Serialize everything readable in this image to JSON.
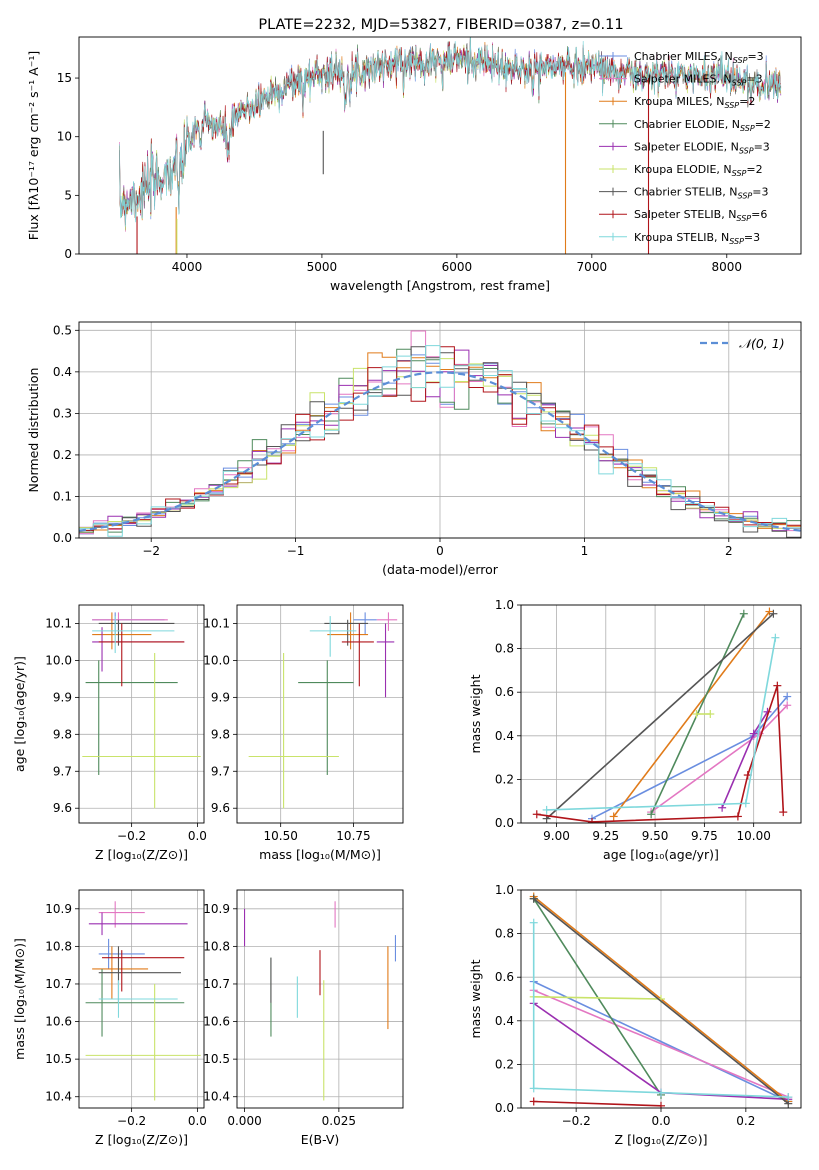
{
  "title": "PLATE=2232, MJD=53827, FIBERID=0387, z=0.11",
  "colors": {
    "Chabrier MILES": "#6a8ee0",
    "Salpeter MILES": "#e377c2",
    "Kroupa MILES": "#e07b1a",
    "Chabrier ELODIE": "#4f8a5c",
    "Salpeter ELODIE": "#9a2fb0",
    "Kroupa ELODIE": "#c9e36a",
    "Chabrier STELIB": "#555555",
    "Salpeter STELIB": "#b0141a",
    "Kroupa STELIB": "#7fd8dc"
  },
  "chart_data": [
    {
      "id": "spectrum",
      "type": "line",
      "xlabel": "wavelength [Angstrom, rest frame]",
      "ylabel": "Flux [fλ10⁻¹⁷ erg cm⁻² s⁻¹ A⁻¹]",
      "xlim": [
        3200,
        8550
      ],
      "ylim": [
        0,
        18.5
      ],
      "xticks": [
        4000,
        5000,
        6000,
        7000,
        8000
      ],
      "yticks": [
        0,
        5,
        10,
        15
      ],
      "grid": false,
      "legend_position": "upper right",
      "legend": [
        {
          "model": "Chabrier MILES",
          "nssp": "3"
        },
        {
          "model": "Salpeter MILES",
          "nssp": "3"
        },
        {
          "model": "Kroupa MILES",
          "nssp": "2"
        },
        {
          "model": "Chabrier ELODIE",
          "nssp": "2"
        },
        {
          "model": "Salpeter ELODIE",
          "nssp": "3"
        },
        {
          "model": "Kroupa ELODIE",
          "nssp": "2"
        },
        {
          "model": "Chabrier STELIB",
          "nssp": "3"
        },
        {
          "model": "Salpeter STELIB",
          "nssp": "6"
        },
        {
          "model": "Kroupa STELIB",
          "nssp": "3"
        }
      ],
      "spectrum_envelope": {
        "x": [
          3500,
          3600,
          3700,
          3800,
          3900,
          4000,
          4100,
          4200,
          4300,
          4400,
          4600,
          4800,
          5000,
          5200,
          5400,
          5600,
          5800,
          6000,
          6200,
          6400,
          6600,
          6800,
          7000,
          7200,
          7400,
          7600,
          7800,
          8000,
          8200,
          8400
        ],
        "y": [
          4.3,
          4.9,
          5.5,
          6.5,
          7.2,
          9.5,
          11.1,
          11.0,
          10.3,
          12.0,
          13.5,
          14.6,
          15.5,
          15.3,
          16.0,
          16.3,
          16.5,
          16.6,
          16.4,
          15.6,
          15.9,
          16.0,
          16.1,
          15.5,
          15.1,
          15.3,
          15.2,
          15.4,
          14.2,
          14.7
        ]
      }
    },
    {
      "id": "residuals",
      "type": "step",
      "xlabel": "(data-model)/error",
      "ylabel": "Normed distribution",
      "xlim": [
        -2.5,
        2.5
      ],
      "ylim": [
        0,
        0.52
      ],
      "xticks": [
        -2,
        -1,
        0,
        1,
        2
      ],
      "yticks": [
        0.0,
        0.1,
        0.2,
        0.3,
        0.4,
        0.5
      ],
      "grid": true,
      "legend_label": "𝒩(0, 1)",
      "bin_width": 0.1
    },
    {
      "id": "age_vs_Z",
      "type": "errorbar",
      "xlabel": "Z [log₁₀(Z/Z⊙)]",
      "ylabel": "age  [log₁₀(age/yr)]",
      "xlim": [
        -0.36,
        0.02
      ],
      "ylim": [
        9.56,
        10.15
      ],
      "xticks": [
        -0.2,
        0.0
      ],
      "yticks": [
        9.6,
        9.7,
        9.8,
        9.9,
        10.0,
        10.1
      ],
      "points": [
        {
          "model": "Chabrier MILES",
          "x": -0.25,
          "xlo": 0.07,
          "xhi": 0.15,
          "y": 10.11,
          "ylo": 0.04,
          "yhi": 0.02
        },
        {
          "model": "Salpeter MILES",
          "x": -0.24,
          "xlo": 0.08,
          "xhi": 0.15,
          "y": 10.11,
          "ylo": 0.03,
          "yhi": 0.02
        },
        {
          "model": "Kroupa MILES",
          "x": -0.26,
          "xlo": 0.06,
          "xhi": 0.12,
          "y": 10.07,
          "ylo": 0.04,
          "yhi": 0.06
        },
        {
          "model": "Chabrier ELODIE",
          "x": -0.3,
          "xlo": 0.04,
          "xhi": 0.24,
          "y": 9.94,
          "ylo": 0.25,
          "yhi": 0.06
        },
        {
          "model": "Salpeter ELODIE",
          "x": -0.29,
          "xlo": 0.03,
          "xhi": 0.25,
          "y": 10.05,
          "ylo": 0.08,
          "yhi": 0.04
        },
        {
          "model": "Kroupa ELODIE",
          "x": -0.13,
          "xlo": 0.22,
          "xhi": 0.14,
          "y": 9.74,
          "ylo": 0.14,
          "yhi": 0.28
        },
        {
          "model": "Chabrier STELIB",
          "x": -0.24,
          "xlo": 0.06,
          "xhi": 0.17,
          "y": 10.1,
          "ylo": 0.06,
          "yhi": 0.01
        },
        {
          "model": "Salpeter STELIB",
          "x": -0.23,
          "xlo": 0.07,
          "xhi": 0.19,
          "y": 10.05,
          "ylo": 0.12,
          "yhi": 0.05
        },
        {
          "model": "Kroupa STELIB",
          "x": -0.25,
          "xlo": 0.07,
          "xhi": 0.18,
          "y": 10.08,
          "ylo": 0.06,
          "yhi": 0.04
        }
      ]
    },
    {
      "id": "age_vs_mass",
      "type": "errorbar",
      "xlabel": "mass [log₁₀(M/M⊙)]",
      "ylabel": "",
      "xlim": [
        10.35,
        10.92
      ],
      "ylim": [
        9.56,
        10.15
      ],
      "xticks": [
        10.5,
        10.75
      ],
      "yticks": [
        9.6,
        9.7,
        9.8,
        9.9,
        10.0,
        10.1
      ],
      "points": [
        {
          "model": "Chabrier MILES",
          "x": 10.79,
          "xlo": 0.04,
          "xhi": 0.04,
          "y": 10.11,
          "ylo": 0.04,
          "yhi": 0.02
        },
        {
          "model": "Salpeter MILES",
          "x": 10.87,
          "xlo": 0.04,
          "xhi": 0.03,
          "y": 10.11,
          "ylo": 0.03,
          "yhi": 0.02
        },
        {
          "model": "Kroupa MILES",
          "x": 10.74,
          "xlo": 0.08,
          "xhi": 0.06,
          "y": 10.07,
          "ylo": 0.04,
          "yhi": 0.06
        },
        {
          "model": "Chabrier ELODIE",
          "x": 10.66,
          "xlo": 0.1,
          "xhi": 0.09,
          "y": 9.94,
          "ylo": 0.25,
          "yhi": 0.06
        },
        {
          "model": "Salpeter ELODIE",
          "x": 10.86,
          "xlo": 0.03,
          "xhi": 0.03,
          "y": 10.05,
          "ylo": 0.15,
          "yhi": 0.05
        },
        {
          "model": "Kroupa ELODIE",
          "x": 10.51,
          "xlo": 0.12,
          "xhi": 0.19,
          "y": 9.74,
          "ylo": 0.14,
          "yhi": 0.28
        },
        {
          "model": "Chabrier STELIB",
          "x": 10.73,
          "xlo": 0.08,
          "xhi": 0.07,
          "y": 10.1,
          "ylo": 0.06,
          "yhi": 0.01
        },
        {
          "model": "Salpeter STELIB",
          "x": 10.77,
          "xlo": 0.06,
          "xhi": 0.05,
          "y": 10.05,
          "ylo": 0.12,
          "yhi": 0.05
        },
        {
          "model": "Kroupa STELIB",
          "x": 10.67,
          "xlo": 0.07,
          "xhi": 0.09,
          "y": 10.08,
          "ylo": 0.07,
          "yhi": 0.04
        }
      ]
    },
    {
      "id": "mass_weight_vs_age",
      "type": "line",
      "xlabel": "age  [log₁₀(age/yr)]",
      "ylabel": "mass weight",
      "xlim": [
        8.82,
        10.24
      ],
      "ylim": [
        0,
        1.0
      ],
      "xticks": [
        9.0,
        9.25,
        9.5,
        9.75,
        10.0
      ],
      "yticks": [
        0.0,
        0.2,
        0.4,
        0.6,
        0.8,
        1.0
      ],
      "grid": true,
      "series": [
        {
          "model": "Chabrier MILES",
          "x": [
            9.18,
            10.0,
            10.17
          ],
          "y": [
            0.02,
            0.4,
            0.58
          ]
        },
        {
          "model": "Salpeter MILES",
          "x": [
            9.48,
            10.03,
            10.17
          ],
          "y": [
            0.05,
            0.41,
            0.54
          ]
        },
        {
          "model": "Kroupa MILES",
          "x": [
            9.29,
            10.08
          ],
          "y": [
            0.03,
            0.97
          ]
        },
        {
          "model": "Chabrier ELODIE",
          "x": [
            9.48,
            9.95
          ],
          "y": [
            0.04,
            0.96
          ]
        },
        {
          "model": "Salpeter ELODIE",
          "x": [
            9.84,
            10.0,
            10.07
          ],
          "y": [
            0.07,
            0.41,
            0.51
          ]
        },
        {
          "model": "Kroupa ELODIE",
          "x": [
            9.71,
            9.78
          ],
          "y": [
            0.5,
            0.5
          ]
        },
        {
          "model": "Chabrier STELIB",
          "x": [
            8.95,
            10.1
          ],
          "y": [
            0.02,
            0.96
          ]
        },
        {
          "model": "Salpeter STELIB",
          "x": [
            8.9,
            9.18,
            9.92,
            9.97,
            10.12,
            10.15
          ],
          "y": [
            0.04,
            0.005,
            0.03,
            0.22,
            0.63,
            0.05
          ]
        },
        {
          "model": "Kroupa STELIB",
          "x": [
            8.95,
            9.96,
            10.11
          ],
          "y": [
            0.06,
            0.09,
            0.85
          ]
        }
      ]
    },
    {
      "id": "mass_vs_Z",
      "type": "errorbar",
      "xlabel": "Z [log₁₀(Z/Z⊙)]",
      "ylabel": "mass [log₁₀(M/M⊙)]",
      "xlim": [
        -0.36,
        0.02
      ],
      "ylim": [
        10.37,
        10.95
      ],
      "xticks": [
        -0.2,
        0.0
      ],
      "yticks": [
        10.4,
        10.5,
        10.6,
        10.7,
        10.8,
        10.9
      ],
      "points": [
        {
          "model": "Chabrier MILES",
          "x": -0.27,
          "xlo": 0.03,
          "xhi": 0.11,
          "y": 10.78,
          "ylo": 0.04,
          "yhi": 0.04
        },
        {
          "model": "Salpeter MILES",
          "x": -0.25,
          "xlo": 0.05,
          "xhi": 0.09,
          "y": 10.89,
          "ylo": 0.04,
          "yhi": 0.03
        },
        {
          "model": "Kroupa MILES",
          "x": -0.26,
          "xlo": 0.06,
          "xhi": 0.11,
          "y": 10.74,
          "ylo": 0.08,
          "yhi": 0.06
        },
        {
          "model": "Chabrier ELODIE",
          "x": -0.29,
          "xlo": 0.05,
          "xhi": 0.25,
          "y": 10.65,
          "ylo": 0.09,
          "yhi": 0.09
        },
        {
          "model": "Salpeter ELODIE",
          "x": -0.29,
          "xlo": 0.04,
          "xhi": 0.26,
          "y": 10.86,
          "ylo": 0.03,
          "yhi": 0.03
        },
        {
          "model": "Kroupa ELODIE",
          "x": -0.13,
          "xlo": 0.21,
          "xhi": 0.14,
          "y": 10.51,
          "ylo": 0.12,
          "yhi": 0.19
        },
        {
          "model": "Chabrier STELIB",
          "x": -0.24,
          "xlo": 0.06,
          "xhi": 0.19,
          "y": 10.73,
          "ylo": 0.08,
          "yhi": 0.07
        },
        {
          "model": "Salpeter STELIB",
          "x": -0.23,
          "xlo": 0.06,
          "xhi": 0.19,
          "y": 10.77,
          "ylo": 0.09,
          "yhi": 0.02
        },
        {
          "model": "Kroupa STELIB",
          "x": -0.24,
          "xlo": 0.06,
          "xhi": 0.18,
          "y": 10.66,
          "ylo": 0.05,
          "yhi": 0.05
        }
      ]
    },
    {
      "id": "mass_vs_EBV",
      "type": "errorbar",
      "xlabel": "E(B-V)",
      "ylabel": "",
      "xlim": [
        -0.002,
        0.042
      ],
      "ylim": [
        10.37,
        10.95
      ],
      "xticks": [
        0.0,
        0.025
      ],
      "yticks": [
        10.4,
        10.5,
        10.6,
        10.7,
        10.8,
        10.9
      ],
      "points": [
        {
          "model": "Chabrier MILES",
          "x": 0.04,
          "y": 10.79,
          "ylo": 0.03,
          "yhi": 0.04
        },
        {
          "model": "Salpeter MILES",
          "x": 0.024,
          "y": 10.89,
          "ylo": 0.04,
          "yhi": 0.03
        },
        {
          "model": "Kroupa MILES",
          "x": 0.038,
          "y": 10.69,
          "ylo": 0.11,
          "yhi": 0.11
        },
        {
          "model": "Chabrier ELODIE",
          "x": 0.007,
          "y": 10.66,
          "ylo": 0.1,
          "yhi": 0.11
        },
        {
          "model": "Salpeter ELODIE",
          "x": 0.0,
          "y": 10.84,
          "ylo": 0.04,
          "yhi": 0.06
        },
        {
          "model": "Kroupa ELODIE",
          "x": 0.021,
          "y": 10.52,
          "ylo": 0.13,
          "yhi": 0.19
        },
        {
          "model": "Chabrier STELIB",
          "x": 0.007,
          "y": 10.72,
          "ylo": 0.07,
          "yhi": 0.05
        },
        {
          "model": "Salpeter STELIB",
          "x": 0.02,
          "y": 10.73,
          "ylo": 0.06,
          "yhi": 0.06
        },
        {
          "model": "Kroupa STELIB",
          "x": 0.014,
          "y": 10.66,
          "ylo": 0.05,
          "yhi": 0.06
        }
      ]
    },
    {
      "id": "mass_weight_vs_Z",
      "type": "line",
      "xlabel": "Z [log₁₀(Z/Z⊙)]",
      "ylabel": "mass weight",
      "xlim": [
        -0.33,
        0.33
      ],
      "ylim": [
        0,
        1.0
      ],
      "xticks": [
        -0.2,
        0.0,
        0.2
      ],
      "yticks": [
        0.0,
        0.2,
        0.4,
        0.6,
        0.8,
        1.0
      ],
      "grid": true,
      "series": [
        {
          "model": "Chabrier MILES",
          "x": [
            -0.3,
            0.3
          ],
          "y": [
            0.58,
            0.03
          ]
        },
        {
          "model": "Salpeter MILES",
          "x": [
            -0.3,
            0.3
          ],
          "y": [
            0.54,
            0.05
          ]
        },
        {
          "model": "Kroupa MILES",
          "x": [
            -0.3,
            0.3
          ],
          "y": [
            0.97,
            0.03
          ]
        },
        {
          "model": "Chabrier ELODIE",
          "x": [
            -0.3,
            0.0
          ],
          "y": [
            0.96,
            0.06
          ]
        },
        {
          "model": "Salpeter ELODIE",
          "x": [
            -0.3,
            0.0,
            0.3
          ],
          "y": [
            0.48,
            0.07,
            0.04
          ]
        },
        {
          "model": "Kroupa ELODIE",
          "x": [
            -0.3,
            0.0
          ],
          "y": [
            0.51,
            0.5
          ]
        },
        {
          "model": "Chabrier STELIB",
          "x": [
            -0.3,
            0.3
          ],
          "y": [
            0.96,
            0.02
          ]
        },
        {
          "model": "Salpeter STELIB",
          "x": [
            -0.3,
            0.0
          ],
          "y": [
            0.03,
            0.01
          ]
        },
        {
          "model": "Kroupa STELIB",
          "x": [
            -0.3,
            -0.3,
            0.0,
            0.3
          ],
          "y": [
            0.85,
            0.09,
            0.07,
            0.05
          ]
        }
      ]
    }
  ]
}
